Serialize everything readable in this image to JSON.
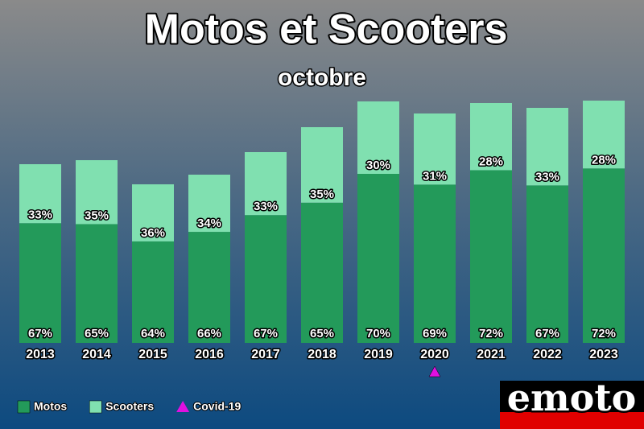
{
  "chart_data": {
    "type": "stacked_bar_percent",
    "title": "Motos et Scooters",
    "subtitle": "octobre",
    "categories": [
      "2013",
      "2014",
      "2015",
      "2016",
      "2017",
      "2018",
      "2019",
      "2020",
      "2021",
      "2022",
      "2023"
    ],
    "totals": [
      222,
      227,
      197,
      209,
      237,
      268,
      300,
      285,
      298,
      292,
      301
    ],
    "series": [
      {
        "name": "Motos",
        "color": "#239a5a",
        "values": [
          67,
          65,
          64,
          66,
          67,
          65,
          70,
          69,
          72,
          67,
          72
        ]
      },
      {
        "name": "Scooters",
        "color": "#80e0b0",
        "values": [
          33,
          35,
          36,
          34,
          33,
          35,
          30,
          31,
          28,
          33,
          28
        ]
      }
    ],
    "annotations": [
      {
        "label": "Covid-19",
        "category": "2020",
        "color": "#e010e0"
      }
    ],
    "logo": "emoto"
  }
}
